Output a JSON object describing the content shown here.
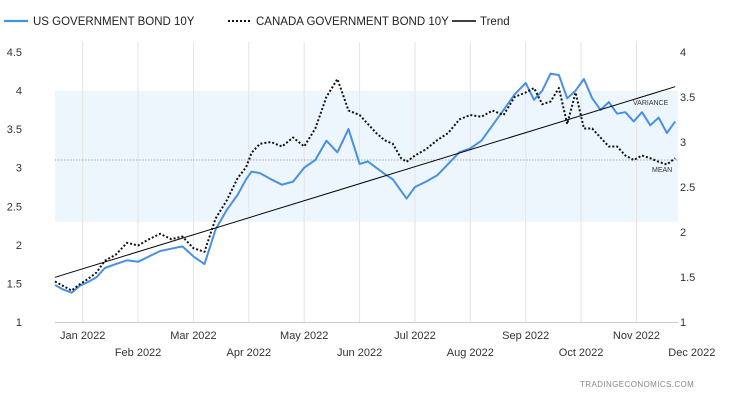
{
  "chart_data": {
    "type": "line",
    "legend": [
      {
        "name": "US GOVERNMENT BOND 10Y",
        "color": "#4a90e2",
        "style": "solid"
      },
      {
        "name": "CANADA GOVERNMENT BOND 10Y",
        "color": "#111111",
        "style": "dotted"
      },
      {
        "name": "Trend",
        "color": "#000000",
        "style": "solid"
      }
    ],
    "legend_position": "top-left",
    "x_ticks_top": [
      "Jan 2022",
      "Mar 2022",
      "May 2022",
      "Jul 2022",
      "Sep 2022",
      "Nov 2022"
    ],
    "x_ticks_bottom": [
      "Feb 2022",
      "Apr 2022",
      "Jun 2022",
      "Aug 2022",
      "Oct 2022",
      "Dec 2022"
    ],
    "y_left": {
      "ticks": [
        "4.5",
        "4",
        "3.5",
        "3",
        "2.5",
        "2",
        "1.5",
        "1"
      ],
      "range": [
        1,
        4.5
      ]
    },
    "y_right": {
      "ticks": [
        "4",
        "3.5",
        "3",
        "2.5",
        "2",
        "1.5",
        "1"
      ],
      "range": [
        1,
        4
      ]
    },
    "x_range": [
      -0.5,
      10.75
    ],
    "grid": "vertical only",
    "band": {
      "label_top": "VARIANCE",
      "range": [
        2.3,
        4.0
      ],
      "color": "#eef6fd"
    },
    "mean": {
      "label": "MEAN",
      "value": 3.1
    },
    "source": "TRADINGECONOMICS.COM",
    "series": [
      {
        "name": "US GOVERNMENT BOND 10Y",
        "axis": "left",
        "x": [
          -0.5,
          -0.35,
          -0.2,
          -0.05,
          0.1,
          0.25,
          0.4,
          0.6,
          0.8,
          1.0,
          1.2,
          1.4,
          1.6,
          1.8,
          2.0,
          2.2,
          2.4,
          2.6,
          2.8,
          2.95,
          3.05,
          3.2,
          3.4,
          3.6,
          3.8,
          4.0,
          4.2,
          4.4,
          4.6,
          4.8,
          5.0,
          5.15,
          5.3,
          5.45,
          5.6,
          5.75,
          5.85,
          6.0,
          6.2,
          6.4,
          6.6,
          6.8,
          7.0,
          7.2,
          7.4,
          7.6,
          7.8,
          8.0,
          8.15,
          8.3,
          8.45,
          8.6,
          8.75,
          8.9,
          9.05,
          9.2,
          9.35,
          9.5,
          9.65,
          9.8,
          9.95,
          10.1,
          10.25,
          10.4,
          10.55,
          10.7
        ],
        "values": [
          1.48,
          1.42,
          1.38,
          1.47,
          1.52,
          1.58,
          1.7,
          1.75,
          1.8,
          1.78,
          1.85,
          1.92,
          1.95,
          1.98,
          1.85,
          1.75,
          2.2,
          2.45,
          2.65,
          2.85,
          2.95,
          2.93,
          2.85,
          2.78,
          2.82,
          3.0,
          3.1,
          3.35,
          3.2,
          3.5,
          3.05,
          3.08,
          3.0,
          2.92,
          2.85,
          2.7,
          2.6,
          2.75,
          2.82,
          2.9,
          3.05,
          3.2,
          3.25,
          3.35,
          3.55,
          3.75,
          3.95,
          4.1,
          3.88,
          4.0,
          4.22,
          4.2,
          3.9,
          4.0,
          4.15,
          3.9,
          3.75,
          3.85,
          3.7,
          3.72,
          3.6,
          3.72,
          3.55,
          3.65,
          3.45,
          3.6
        ]
      },
      {
        "name": "CANADA GOVERNMENT BOND 10Y",
        "axis": "right",
        "x": [
          -0.5,
          -0.35,
          -0.2,
          -0.05,
          0.1,
          0.25,
          0.4,
          0.6,
          0.8,
          1.0,
          1.2,
          1.4,
          1.6,
          1.8,
          2.0,
          2.2,
          2.4,
          2.6,
          2.8,
          2.95,
          3.05,
          3.2,
          3.4,
          3.6,
          3.8,
          4.0,
          4.2,
          4.4,
          4.6,
          4.8,
          5.0,
          5.15,
          5.3,
          5.45,
          5.6,
          5.75,
          5.85,
          6.0,
          6.2,
          6.4,
          6.6,
          6.8,
          7.0,
          7.2,
          7.4,
          7.6,
          7.8,
          8.0,
          8.15,
          8.3,
          8.45,
          8.6,
          8.75,
          8.9,
          9.05,
          9.2,
          9.35,
          9.5,
          9.65,
          9.8,
          9.95,
          10.1,
          10.25,
          10.4,
          10.55,
          10.7
        ],
        "values": [
          1.45,
          1.4,
          1.35,
          1.42,
          1.48,
          1.55,
          1.68,
          1.75,
          1.88,
          1.85,
          1.92,
          1.98,
          1.92,
          1.95,
          1.82,
          1.78,
          2.15,
          2.35,
          2.6,
          2.72,
          2.88,
          2.98,
          3.0,
          2.95,
          3.05,
          2.95,
          3.15,
          3.5,
          3.7,
          3.35,
          3.3,
          3.2,
          3.1,
          3.02,
          2.98,
          2.82,
          2.78,
          2.85,
          2.92,
          3.02,
          3.1,
          3.25,
          3.3,
          3.28,
          3.35,
          3.3,
          3.5,
          3.55,
          3.6,
          3.42,
          3.45,
          3.6,
          3.2,
          3.55,
          3.15,
          3.15,
          3.05,
          2.95,
          2.95,
          2.85,
          2.8,
          2.85,
          2.82,
          2.78,
          2.75,
          2.82
        ]
      },
      {
        "name": "Trend",
        "axis": "left",
        "x": [
          -0.5,
          10.7
        ],
        "values": [
          1.58,
          4.05
        ]
      }
    ]
  }
}
